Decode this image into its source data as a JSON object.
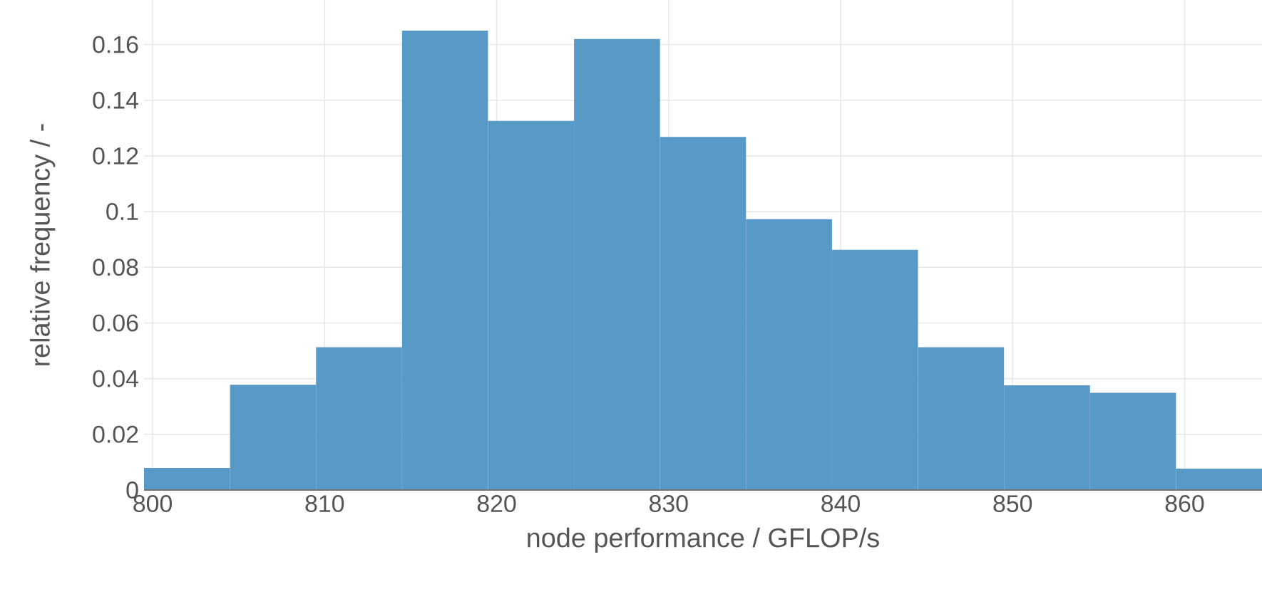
{
  "chart_data": {
    "type": "histogram",
    "xlabel": "node performance / GFLOP/s",
    "ylabel": "relative frequency / -",
    "bins": [
      799.5,
      804.5,
      809.5,
      814.5,
      819.5,
      824.5,
      829.5,
      834.5,
      839.5,
      844.5,
      849.5,
      854.5,
      859.5,
      864.5
    ],
    "values": [
      0.0079,
      0.0378,
      0.0513,
      0.165,
      0.1326,
      0.162,
      0.1268,
      0.0973,
      0.0863,
      0.0513,
      0.0376,
      0.0349,
      0.0077
    ],
    "color": "#5799c7",
    "xlim": [
      799.5,
      864.5
    ],
    "ylim": [
      0,
      0.176
    ],
    "xticks": [
      800,
      810,
      820,
      830,
      840,
      850,
      860
    ],
    "yticks": [
      0,
      0.02,
      0.04,
      0.06,
      0.08,
      0.1,
      0.12,
      0.14,
      0.16
    ],
    "grid": true
  }
}
